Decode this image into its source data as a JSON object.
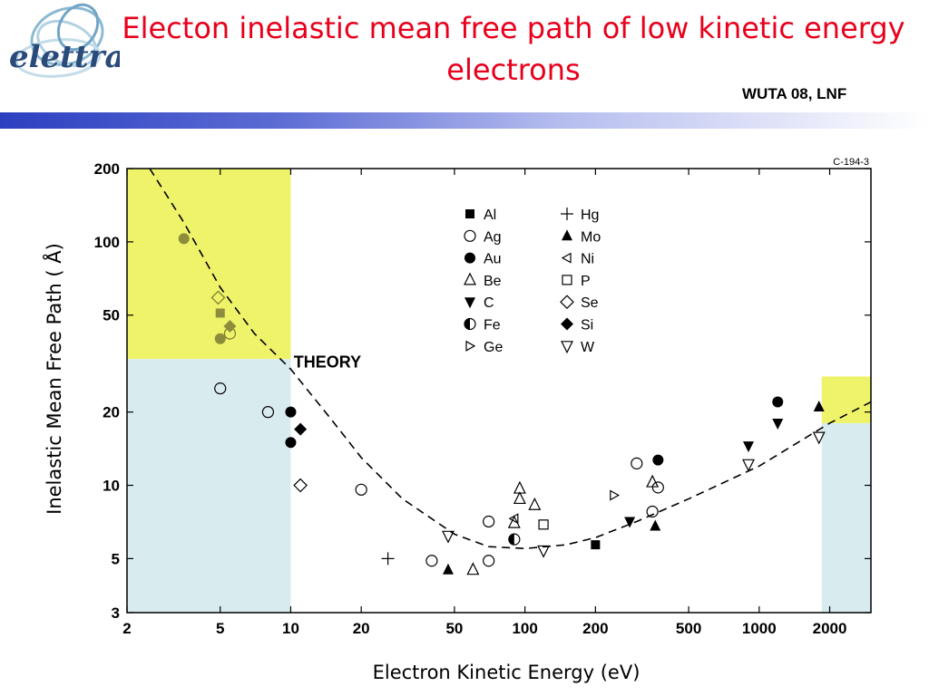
{
  "slide": {
    "title": "Electon inelastic mean free path of low kinetic energy electrons",
    "conference": "WUTA 08, LNF",
    "logo_text": "elettra"
  },
  "colors": {
    "title": "#e8001c",
    "yellow_region": "#eef36a",
    "blue_region": "#d8ecf0",
    "bar_start": "#2c3fc0"
  },
  "chart_data": {
    "type": "scatter",
    "xlabel": "Electron Kinetic Energy (eV)",
    "ylabel": "Inelastic Mean Free Path ( Å)",
    "figure_code": "C-194-3",
    "theory_label": "THEORY",
    "xscale": "log",
    "yscale": "log",
    "xlim": [
      2,
      3000
    ],
    "ylim": [
      3,
      200
    ],
    "xticks": [
      2,
      5,
      10,
      20,
      50,
      100,
      200,
      500,
      1000,
      2000
    ],
    "xtick_labels": [
      "2",
      "5",
      "10",
      "20",
      "50",
      "100",
      "200",
      "500",
      "1000",
      "2000"
    ],
    "yticks": [
      3,
      5,
      10,
      20,
      50,
      100,
      200
    ],
    "ytick_labels": [
      "3",
      "5",
      "10",
      "20",
      "50",
      "100",
      "200"
    ],
    "regions": [
      {
        "color": "yellow",
        "x": [
          2,
          10
        ],
        "y": [
          33,
          200
        ]
      },
      {
        "color": "blue",
        "x": [
          2,
          10
        ],
        "y": [
          3,
          33
        ]
      },
      {
        "color": "yellow",
        "x": [
          1850,
          3000
        ],
        "y": [
          18,
          28
        ]
      },
      {
        "color": "blue",
        "x": [
          1850,
          3000
        ],
        "y": [
          3,
          18
        ]
      }
    ],
    "theory_curve": [
      [
        2.5,
        200
      ],
      [
        3.5,
        120
      ],
      [
        5,
        65
      ],
      [
        7,
        42
      ],
      [
        10,
        30
      ],
      [
        15,
        18.5
      ],
      [
        20,
        13
      ],
      [
        30,
        8.8
      ],
      [
        50,
        6.3
      ],
      [
        70,
        5.6
      ],
      [
        100,
        5.5
      ],
      [
        150,
        5.7
      ],
      [
        200,
        6.1
      ],
      [
        300,
        7.1
      ],
      [
        500,
        8.8
      ],
      [
        1000,
        12
      ],
      [
        2000,
        18
      ],
      [
        3000,
        22
      ]
    ],
    "legend": [
      {
        "label": "Al",
        "marker": "square-filled"
      },
      {
        "label": "Ag",
        "marker": "circle-open"
      },
      {
        "label": "Au",
        "marker": "circle-filled"
      },
      {
        "label": "Be",
        "marker": "triangle-up-open"
      },
      {
        "label": "C",
        "marker": "triangle-down-filled"
      },
      {
        "label": "Fe",
        "marker": "circle-half"
      },
      {
        "label": "Ge",
        "marker": "triangle-right-open"
      },
      {
        "label": "Hg",
        "marker": "plus"
      },
      {
        "label": "Mo",
        "marker": "triangle-up-filled"
      },
      {
        "label": "Ni",
        "marker": "triangle-left-open"
      },
      {
        "label": "P",
        "marker": "square-open"
      },
      {
        "label": "Se",
        "marker": "diamond-open"
      },
      {
        "label": "Si",
        "marker": "diamond-filled"
      },
      {
        "label": "W",
        "marker": "triangle-down-open"
      }
    ],
    "series": [
      {
        "name": "Al",
        "marker": "square-filled",
        "points": [
          [
            5,
            51
          ],
          [
            200,
            5.7
          ]
        ]
      },
      {
        "name": "Ag",
        "marker": "circle-open",
        "points": [
          [
            5,
            25
          ],
          [
            5.5,
            42
          ],
          [
            8,
            20
          ],
          [
            20,
            9.6
          ],
          [
            40,
            4.9
          ],
          [
            70,
            4.9
          ],
          [
            70,
            7.1
          ],
          [
            300,
            12.3
          ],
          [
            350,
            7.8
          ],
          [
            370,
            9.8
          ]
        ]
      },
      {
        "name": "Au",
        "marker": "circle-filled",
        "points": [
          [
            3.5,
            103
          ],
          [
            5,
            40
          ],
          [
            10,
            20
          ],
          [
            10,
            15
          ],
          [
            370,
            12.7
          ],
          [
            1200,
            22
          ]
        ]
      },
      {
        "name": "Be",
        "marker": "triangle-up-open",
        "points": [
          [
            60,
            4.5
          ],
          [
            90,
            7
          ],
          [
            95,
            9.7
          ],
          [
            95,
            8.8
          ],
          [
            110,
            8.3
          ],
          [
            350,
            10.3
          ]
        ]
      },
      {
        "name": "C",
        "marker": "triangle-down-filled",
        "points": [
          [
            280,
            7.1
          ],
          [
            900,
            14.5
          ],
          [
            1200,
            18
          ]
        ]
      },
      {
        "name": "Fe",
        "marker": "circle-half",
        "points": [
          [
            90,
            6
          ]
        ]
      },
      {
        "name": "Ge",
        "marker": "triangle-right-open",
        "points": [
          [
            240,
            9.1
          ]
        ]
      },
      {
        "name": "Hg",
        "marker": "plus",
        "points": [
          [
            26,
            5
          ]
        ]
      },
      {
        "name": "Mo",
        "marker": "triangle-up-filled",
        "points": [
          [
            47,
            4.5
          ],
          [
            360,
            6.8
          ],
          [
            1800,
            21
          ]
        ]
      },
      {
        "name": "Ni",
        "marker": "triangle-left-open",
        "points": [
          [
            90,
            7.3
          ]
        ]
      },
      {
        "name": "P",
        "marker": "square-open",
        "points": [
          [
            120,
            6.9
          ]
        ]
      },
      {
        "name": "Se",
        "marker": "diamond-open",
        "points": [
          [
            4.9,
            59
          ],
          [
            11,
            10
          ]
        ]
      },
      {
        "name": "Si",
        "marker": "diamond-filled",
        "points": [
          [
            5.5,
            45
          ],
          [
            11,
            17
          ]
        ]
      },
      {
        "name": "W",
        "marker": "triangle-down-open",
        "points": [
          [
            47,
            6.2
          ],
          [
            120,
            5.4
          ],
          [
            900,
            12.2
          ],
          [
            1800,
            15.8
          ]
        ]
      }
    ],
    "faded_points": [
      {
        "marker": "circle-filled",
        "x": 3.5,
        "y": 103
      },
      {
        "marker": "square-filled",
        "x": 5,
        "y": 51
      },
      {
        "marker": "diamond-open",
        "x": 4.9,
        "y": 59
      },
      {
        "marker": "diamond-filled",
        "x": 5.5,
        "y": 45
      },
      {
        "marker": "circle-filled",
        "x": 5,
        "y": 40
      },
      {
        "marker": "circle-open",
        "x": 5.5,
        "y": 42
      }
    ]
  }
}
